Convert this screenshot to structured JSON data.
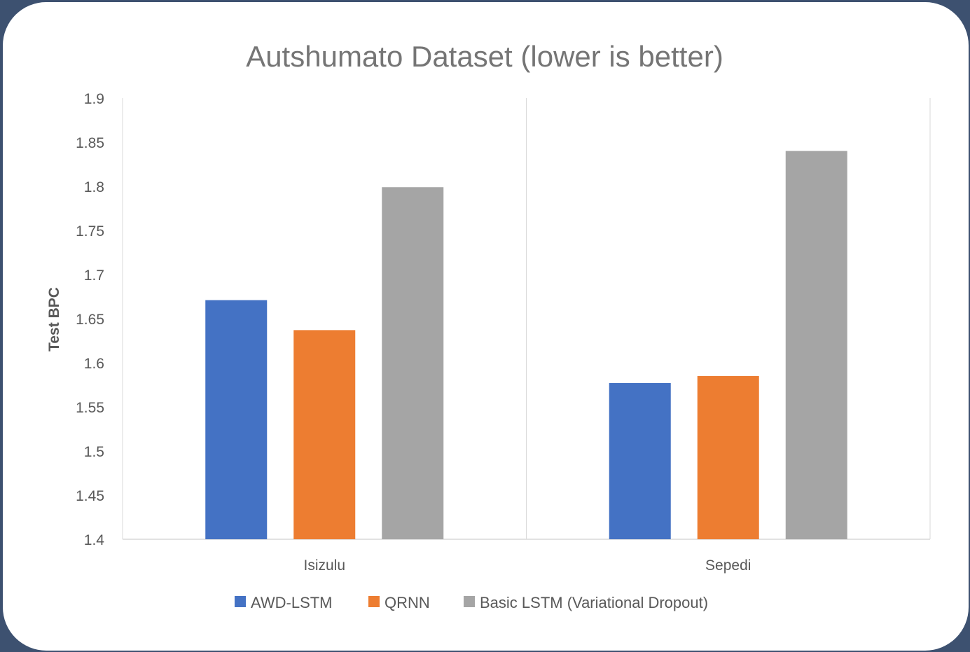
{
  "chart_data": {
    "type": "bar",
    "title": "Autshumato Dataset (lower is better)",
    "xlabel": "",
    "ylabel": "Test BPC",
    "categories": [
      "Isizulu",
      "Sepedi"
    ],
    "series": [
      {
        "name": "AWD-LSTM",
        "color": "#4472c4",
        "values": [
          1.671,
          1.577
        ]
      },
      {
        "name": "QRNN",
        "color": "#ed7d31",
        "values": [
          1.637,
          1.585
        ]
      },
      {
        "name": "Basic LSTM (Variational Dropout)",
        "color": "#a5a5a5",
        "values": [
          1.799,
          1.84
        ]
      }
    ],
    "ylim": [
      1.4,
      1.9
    ],
    "yticks": [
      "1.4",
      "1.45",
      "1.5",
      "1.55",
      "1.6",
      "1.65",
      "1.7",
      "1.75",
      "1.8",
      "1.85",
      "1.9"
    ],
    "grid": false,
    "legend": "bottom"
  }
}
